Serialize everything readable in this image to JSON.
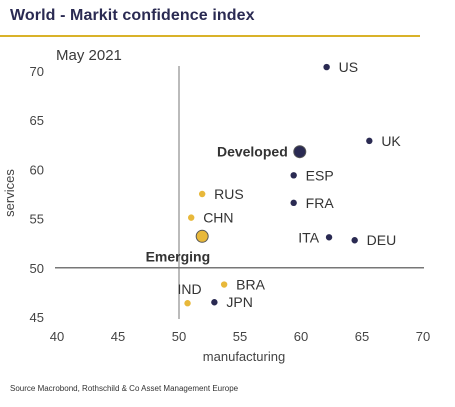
{
  "header": {
    "title": "World - Markit confidence index",
    "subtitle": "May 2021"
  },
  "footer": {
    "source": "Source Macrobond, Rothschild & Co Asset Management Europe"
  },
  "colors": {
    "developed": "#2a2a52",
    "emerging": "#e8b83a",
    "accent_rule": "#d9b229",
    "reference_line": "#777777"
  },
  "chart_data": {
    "type": "scatter",
    "title": "World - Markit confidence index",
    "subtitle": "May 2021",
    "xlabel": "manufacturing",
    "ylabel": "services",
    "xlim": [
      40,
      70
    ],
    "ylim": [
      45,
      71
    ],
    "xticks": [
      40,
      45,
      50,
      55,
      60,
      65,
      70
    ],
    "yticks": [
      45,
      50,
      55,
      60,
      65,
      70
    ],
    "reference_lines": {
      "x": 50,
      "y": 50
    },
    "grid": false,
    "points": [
      {
        "label": "US",
        "x": 62.1,
        "y": 70.4,
        "group": "developed",
        "label_pos": "right"
      },
      {
        "label": "UK",
        "x": 65.6,
        "y": 62.9,
        "group": "developed",
        "label_pos": "right"
      },
      {
        "label": "Developed",
        "x": 59.9,
        "y": 61.8,
        "group": "developed",
        "aggregate": true,
        "label_pos": "left"
      },
      {
        "label": "ESP",
        "x": 59.4,
        "y": 59.4,
        "group": "developed",
        "label_pos": "right"
      },
      {
        "label": "FRA",
        "x": 59.4,
        "y": 56.6,
        "group": "developed",
        "label_pos": "right"
      },
      {
        "label": "ITA",
        "x": 62.3,
        "y": 53.1,
        "group": "developed",
        "label_pos": "left"
      },
      {
        "label": "DEU",
        "x": 64.4,
        "y": 52.8,
        "group": "developed",
        "label_pos": "right"
      },
      {
        "label": "JPN",
        "x": 52.9,
        "y": 46.5,
        "group": "developed",
        "label_pos": "right"
      },
      {
        "label": "RUS",
        "x": 51.9,
        "y": 57.5,
        "group": "emerging",
        "label_pos": "right"
      },
      {
        "label": "CHN",
        "x": 51.0,
        "y": 55.1,
        "group": "emerging",
        "label_pos": "right"
      },
      {
        "label": "Emerging",
        "x": 51.9,
        "y": 53.2,
        "group": "emerging",
        "aggregate": true,
        "label_pos": "below-left"
      },
      {
        "label": "BRA",
        "x": 53.7,
        "y": 48.3,
        "group": "emerging",
        "label_pos": "right"
      },
      {
        "label": "IND",
        "x": 50.7,
        "y": 46.4,
        "group": "emerging",
        "label_pos": "above"
      }
    ]
  }
}
